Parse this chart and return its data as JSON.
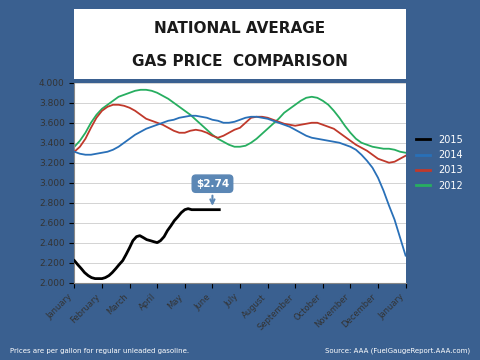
{
  "title_line1": "NATIONAL AVERAGE",
  "title_line2": "GAS PRICE  COMPARISON",
  "xlabel_months": [
    "January",
    "February",
    "March",
    "April",
    "May",
    "June",
    "July",
    "August",
    "September",
    "October",
    "November",
    "December",
    "January"
  ],
  "ylim": [
    2.0,
    4.0
  ],
  "yticks": [
    2.0,
    2.2,
    2.4,
    2.6,
    2.8,
    3.0,
    3.2,
    3.4,
    3.6,
    3.8,
    4.0
  ],
  "ytick_labels": [
    "2.000",
    "2.200",
    "2.400",
    "2.600",
    "2.800",
    "3.000",
    "3.200",
    "3.400",
    "3.600",
    "3.800",
    "4.000"
  ],
  "annotation_text": "$2.74",
  "background_outer": "#3a6090",
  "background_header": "#2d4f75",
  "background_chart": "#ffffff",
  "footer_text_left": "Prices are per gallon for regular unleaded gasoline.",
  "footer_text_right": "Source: AAA (FuelGaugeReport.AAA.com)",
  "legend_labels": [
    "2015",
    "2014",
    "2013",
    "2012"
  ],
  "legend_colors": [
    "#000000",
    "#2970b8",
    "#c0392b",
    "#27ae60"
  ],
  "series_2015_x": [
    0,
    0.12,
    0.25,
    0.37,
    0.5,
    0.62,
    0.75,
    0.87,
    1.0,
    1.12,
    1.25,
    1.37,
    1.5,
    1.62,
    1.75,
    1.87,
    2.0,
    2.12,
    2.25,
    2.37,
    2.5,
    2.62,
    2.75,
    2.87,
    3.0,
    3.12,
    3.25,
    3.37,
    3.5,
    3.62,
    3.75,
    3.87,
    4.0,
    4.12,
    4.25,
    4.37,
    4.5,
    4.62,
    4.75,
    4.87,
    5.0,
    5.12,
    5.25
  ],
  "series_2015_y": [
    2.22,
    2.18,
    2.14,
    2.1,
    2.07,
    2.05,
    2.04,
    2.04,
    2.04,
    2.05,
    2.07,
    2.1,
    2.14,
    2.18,
    2.22,
    2.28,
    2.35,
    2.42,
    2.46,
    2.47,
    2.45,
    2.43,
    2.42,
    2.41,
    2.4,
    2.42,
    2.46,
    2.52,
    2.57,
    2.62,
    2.66,
    2.7,
    2.73,
    2.74,
    2.73,
    2.73,
    2.73,
    2.73,
    2.73,
    2.73,
    2.73,
    2.73,
    2.73
  ],
  "series_2014_x": [
    0,
    0.2,
    0.4,
    0.6,
    0.8,
    1.0,
    1.2,
    1.4,
    1.6,
    1.8,
    2.0,
    2.2,
    2.4,
    2.6,
    2.8,
    3.0,
    3.2,
    3.4,
    3.6,
    3.8,
    4.0,
    4.2,
    4.4,
    4.6,
    4.8,
    5.0,
    5.2,
    5.4,
    5.6,
    5.8,
    6.0,
    6.2,
    6.4,
    6.6,
    6.8,
    7.0,
    7.2,
    7.4,
    7.6,
    7.8,
    8.0,
    8.2,
    8.4,
    8.6,
    8.8,
    9.0,
    9.2,
    9.4,
    9.6,
    9.8,
    10.0,
    10.2,
    10.4,
    10.6,
    10.8,
    11.0,
    11.2,
    11.4,
    11.6,
    11.8,
    12.0
  ],
  "series_2014_y": [
    3.31,
    3.29,
    3.28,
    3.28,
    3.29,
    3.3,
    3.31,
    3.33,
    3.36,
    3.4,
    3.44,
    3.48,
    3.51,
    3.54,
    3.56,
    3.58,
    3.6,
    3.62,
    3.63,
    3.65,
    3.66,
    3.67,
    3.67,
    3.66,
    3.65,
    3.63,
    3.62,
    3.6,
    3.6,
    3.61,
    3.63,
    3.65,
    3.66,
    3.66,
    3.65,
    3.64,
    3.62,
    3.6,
    3.58,
    3.56,
    3.53,
    3.5,
    3.47,
    3.45,
    3.44,
    3.43,
    3.42,
    3.41,
    3.4,
    3.38,
    3.36,
    3.33,
    3.28,
    3.22,
    3.15,
    3.05,
    2.92,
    2.77,
    2.63,
    2.45,
    2.27
  ],
  "series_2013_x": [
    0,
    0.2,
    0.4,
    0.6,
    0.8,
    1.0,
    1.2,
    1.4,
    1.6,
    1.8,
    2.0,
    2.2,
    2.4,
    2.6,
    2.8,
    3.0,
    3.2,
    3.4,
    3.6,
    3.8,
    4.0,
    4.2,
    4.4,
    4.6,
    4.8,
    5.0,
    5.2,
    5.4,
    5.6,
    5.8,
    6.0,
    6.2,
    6.4,
    6.6,
    6.8,
    7.0,
    7.2,
    7.4,
    7.6,
    7.8,
    8.0,
    8.2,
    8.4,
    8.6,
    8.8,
    9.0,
    9.2,
    9.4,
    9.6,
    9.8,
    10.0,
    10.2,
    10.4,
    10.6,
    10.8,
    11.0,
    11.2,
    11.4,
    11.6,
    11.8,
    12.0
  ],
  "series_2013_y": [
    3.31,
    3.36,
    3.44,
    3.55,
    3.65,
    3.72,
    3.76,
    3.78,
    3.78,
    3.77,
    3.75,
    3.72,
    3.68,
    3.64,
    3.62,
    3.6,
    3.58,
    3.55,
    3.52,
    3.5,
    3.5,
    3.52,
    3.53,
    3.52,
    3.5,
    3.47,
    3.45,
    3.47,
    3.5,
    3.53,
    3.55,
    3.6,
    3.65,
    3.66,
    3.66,
    3.65,
    3.63,
    3.61,
    3.59,
    3.58,
    3.57,
    3.58,
    3.59,
    3.6,
    3.6,
    3.58,
    3.56,
    3.54,
    3.5,
    3.46,
    3.42,
    3.38,
    3.35,
    3.32,
    3.28,
    3.24,
    3.22,
    3.2,
    3.21,
    3.24,
    3.27
  ],
  "series_2012_x": [
    0,
    0.2,
    0.4,
    0.6,
    0.8,
    1.0,
    1.2,
    1.4,
    1.6,
    1.8,
    2.0,
    2.2,
    2.4,
    2.6,
    2.8,
    3.0,
    3.2,
    3.4,
    3.6,
    3.8,
    4.0,
    4.2,
    4.4,
    4.6,
    4.8,
    5.0,
    5.2,
    5.4,
    5.6,
    5.8,
    6.0,
    6.2,
    6.4,
    6.6,
    6.8,
    7.0,
    7.2,
    7.4,
    7.6,
    7.8,
    8.0,
    8.2,
    8.4,
    8.6,
    8.8,
    9.0,
    9.2,
    9.4,
    9.6,
    9.8,
    10.0,
    10.2,
    10.4,
    10.6,
    10.8,
    11.0,
    11.2,
    11.4,
    11.6,
    11.8,
    12.0
  ],
  "series_2012_y": [
    3.36,
    3.42,
    3.5,
    3.6,
    3.68,
    3.74,
    3.78,
    3.82,
    3.86,
    3.88,
    3.9,
    3.92,
    3.93,
    3.93,
    3.92,
    3.9,
    3.87,
    3.84,
    3.8,
    3.76,
    3.72,
    3.68,
    3.63,
    3.58,
    3.53,
    3.48,
    3.44,
    3.41,
    3.38,
    3.36,
    3.36,
    3.37,
    3.4,
    3.44,
    3.49,
    3.54,
    3.59,
    3.64,
    3.7,
    3.74,
    3.78,
    3.82,
    3.85,
    3.86,
    3.85,
    3.82,
    3.78,
    3.72,
    3.65,
    3.57,
    3.5,
    3.44,
    3.4,
    3.38,
    3.36,
    3.35,
    3.34,
    3.34,
    3.33,
    3.31,
    3.3
  ]
}
